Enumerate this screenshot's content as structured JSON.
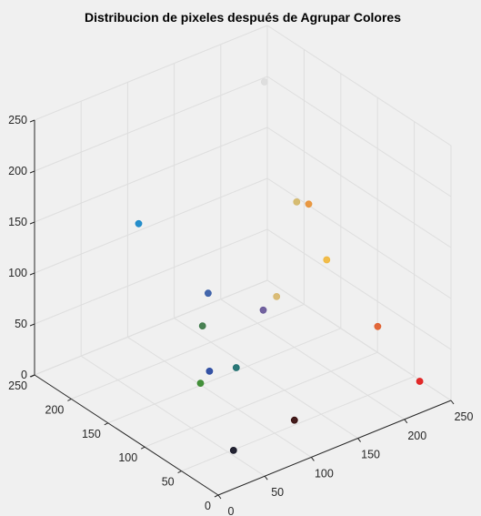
{
  "chart_data": {
    "type": "scatter3d",
    "title": "Distribucion de pixeles después de Agrupar Colores",
    "xlabel": "",
    "ylabel": "",
    "zlabel": "",
    "xlim": [
      0,
      250
    ],
    "ylim": [
      0,
      250
    ],
    "zlim": [
      0,
      250
    ],
    "xticks": [
      "0",
      "50",
      "100",
      "150",
      "200",
      "250"
    ],
    "yticks": [
      "0",
      "50",
      "100",
      "150",
      "200",
      "250"
    ],
    "zticks": [
      "0",
      "50",
      "100",
      "150",
      "200",
      "250"
    ],
    "grid": true,
    "view": {
      "azimuth": -37.5,
      "elevation": 30
    },
    "points": [
      {
        "x": 224,
        "y": 221,
        "z": 218,
        "color": "#dcdcdc"
      },
      {
        "x": 46,
        "y": 72,
        "z": 147,
        "color": "#3a5fa8"
      },
      {
        "x": 25,
        "y": 140,
        "z": 191,
        "color": "#1a88c8"
      },
      {
        "x": 194,
        "y": 139,
        "z": 150,
        "color": "#d4b86a"
      },
      {
        "x": 240,
        "y": 181,
        "z": 111,
        "color": "#e8943a"
      },
      {
        "x": 242,
        "y": 159,
        "z": 66,
        "color": "#f0b840"
      },
      {
        "x": 117,
        "y": 87,
        "z": 97,
        "color": "#6a5a9a"
      },
      {
        "x": 155,
        "y": 117,
        "z": 82,
        "color": "#d8b870"
      },
      {
        "x": 36,
        "y": 67,
        "z": 121,
        "color": "#3f7a4a"
      },
      {
        "x": 34,
        "y": 55,
        "z": 83,
        "color": "#2a4aa0"
      },
      {
        "x": 47,
        "y": 35,
        "z": 91,
        "color": "#207070"
      },
      {
        "x": 236,
        "y": 82,
        "z": 39,
        "color": "#e06030"
      },
      {
        "x": 229,
        "y": 16,
        "z": 19,
        "color": "#e02020"
      },
      {
        "x": 52,
        "y": 90,
        "z": 48,
        "color": "#3a8a30"
      },
      {
        "x": 115,
        "y": 42,
        "z": 11,
        "color": "#3a1010"
      },
      {
        "x": 44,
        "y": 35,
        "z": 11,
        "color": "#181828"
      }
    ]
  }
}
